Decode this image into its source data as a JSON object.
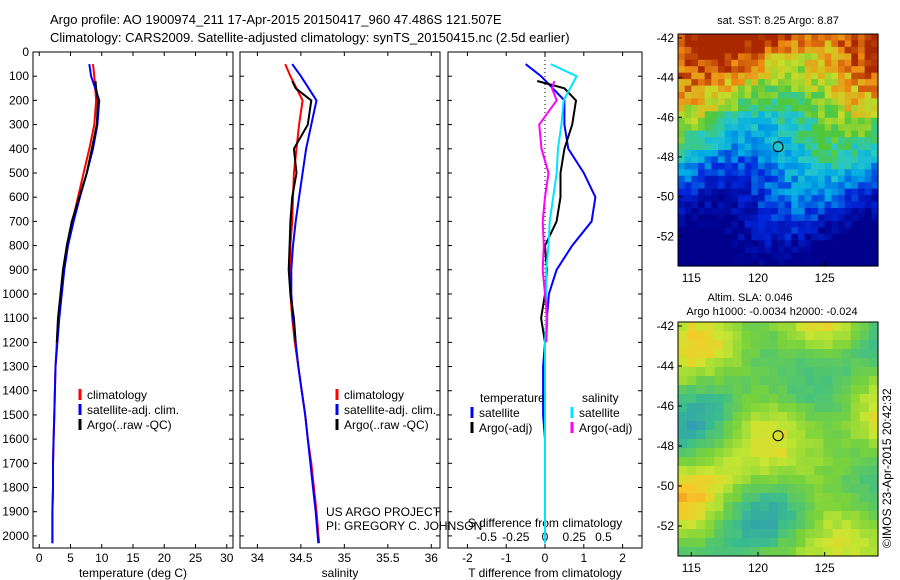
{
  "header": {
    "line1": "Argo profile: AO 1900974_211 17-Apr-2015 20150417_960 47.486S 121.507E",
    "line2": "Climatology: CARS2009. Satellite-adjusted climatology: synTS_20150415.nc (2.5d earlier)"
  },
  "colors": {
    "climatology": "#ff0000",
    "satellite": "#0000ff",
    "argo": "#000000",
    "sal_satellite": "#00e5ff",
    "sal_argo": "#ff00ff"
  },
  "chart_data": [
    {
      "id": "temperature",
      "type": "line",
      "xlabel": "temperature (deg C)",
      "ylabel": "",
      "xlim": [
        -1,
        31
      ],
      "ylim": [
        2050,
        0
      ],
      "xticks": [
        0,
        5,
        10,
        15,
        20,
        25,
        30
      ],
      "yticks": [
        0,
        100,
        200,
        300,
        400,
        500,
        600,
        700,
        800,
        900,
        1000,
        1100,
        1200,
        1300,
        1400,
        1500,
        1600,
        1700,
        1800,
        1900,
        2000
      ],
      "legend": [
        "climatology",
        "satellite-adj. clim.",
        "Argo(..raw -QC)"
      ],
      "series": [
        {
          "name": "climatology",
          "color": "#ff0000",
          "x": [
            8.6,
            8.8,
            9.1,
            8.8,
            8.0,
            7.1,
            6.2,
            5.3,
            4.5,
            3.9,
            3.5,
            3.1,
            2.8,
            2.6,
            2.5,
            2.4,
            2.3,
            2.2,
            2.2,
            2.1,
            2.1
          ],
          "y": [
            50,
            100,
            200,
            300,
            400,
            500,
            600,
            700,
            800,
            900,
            1000,
            1100,
            1200,
            1300,
            1400,
            1500,
            1600,
            1700,
            1800,
            1900,
            2030
          ]
        },
        {
          "name": "satellite-adj. clim.",
          "color": "#0000ff",
          "x": [
            8.0,
            8.3,
            9.6,
            9.3,
            8.6,
            7.6,
            6.5,
            5.5,
            4.6,
            4.0,
            3.6,
            3.2,
            2.9,
            2.6,
            2.5,
            2.4,
            2.3,
            2.2,
            2.2,
            2.1,
            2.1
          ],
          "y": [
            50,
            100,
            200,
            300,
            400,
            500,
            600,
            700,
            800,
            900,
            1000,
            1100,
            1200,
            1300,
            1400,
            1500,
            1600,
            1700,
            1800,
            1900,
            2030
          ]
        },
        {
          "name": "Argo(..raw -QC)",
          "color": "#000000",
          "x": [
            9.0,
            9.1,
            9.4,
            9.2,
            8.4,
            7.6,
            6.4,
            5.2,
            4.4,
            3.8,
            3.4,
            3.0,
            2.8
          ],
          "y": [
            120,
            150,
            200,
            300,
            400,
            500,
            600,
            700,
            800,
            900,
            1000,
            1100,
            1200
          ]
        }
      ]
    },
    {
      "id": "salinity",
      "type": "line",
      "xlabel": "salinity",
      "ylabel": "",
      "xlim": [
        33.8,
        36.1
      ],
      "ylim": [
        2050,
        0
      ],
      "xticks": [
        34,
        34.5,
        35,
        35.5,
        36
      ],
      "legend": [
        "climatology",
        "satellite-adj. clim.",
        "Argo(..raw -QC)"
      ],
      "series": [
        {
          "name": "climatology",
          "color": "#ff0000",
          "x": [
            34.32,
            34.38,
            34.52,
            34.48,
            34.45,
            34.42,
            34.41,
            34.4,
            34.38,
            34.38,
            34.38,
            34.4,
            34.43,
            34.47,
            34.51,
            34.55,
            34.58,
            34.62,
            34.65,
            34.68,
            34.71
          ],
          "y": [
            50,
            100,
            200,
            300,
            400,
            500,
            600,
            700,
            800,
            900,
            1000,
            1100,
            1200,
            1300,
            1400,
            1500,
            1600,
            1700,
            1800,
            1900,
            2030
          ]
        },
        {
          "name": "satellite-adj. clim.",
          "color": "#0000ff",
          "x": [
            34.4,
            34.5,
            34.68,
            34.62,
            34.56,
            34.52,
            34.48,
            34.44,
            34.41,
            34.39,
            34.39,
            34.41,
            34.44,
            34.47,
            34.51,
            34.55,
            34.58,
            34.61,
            34.64,
            34.67,
            34.7
          ],
          "y": [
            50,
            100,
            200,
            300,
            400,
            500,
            600,
            700,
            800,
            900,
            1000,
            1100,
            1200,
            1300,
            1400,
            1500,
            1600,
            1700,
            1800,
            1900,
            2030
          ]
        },
        {
          "name": "Argo(..raw -QC)",
          "color": "#000000",
          "x": [
            34.4,
            34.44,
            34.62,
            34.58,
            34.42,
            34.45,
            34.4,
            34.38,
            34.37,
            34.36,
            34.38,
            34.42,
            34.44
          ],
          "y": [
            120,
            150,
            200,
            300,
            400,
            500,
            600,
            700,
            800,
            900,
            1000,
            1100,
            1200
          ]
        }
      ]
    },
    {
      "id": "difference",
      "type": "line",
      "xlabel": "T difference from climatology",
      "xlabel_top": "S difference from climatology",
      "ylabel": "",
      "xlim": [
        -2.5,
        2.5
      ],
      "xticks": [
        -2,
        -1,
        0,
        1,
        2
      ],
      "xlim_top": [
        -0.83,
        0.83
      ],
      "xticks_top": [
        -0.5,
        -0.25,
        0,
        0.25,
        0.5
      ],
      "ylim": [
        2050,
        0
      ],
      "legend_title_left": "temperature",
      "legend_title_right": "salinity",
      "legend": [
        "satellite",
        "Argo(-adj)",
        "satellite",
        "Argo(-adj)"
      ],
      "series": [
        {
          "name": "satellite",
          "group": "temperature",
          "color": "#0000ff",
          "x": [
            -0.5,
            -0.1,
            0.5,
            0.5,
            0.6,
            1.0,
            1.3,
            1.2,
            0.7,
            0.3,
            0.1,
            0.05,
            0.0,
            -0.05,
            -0.05,
            -0.05,
            0.0,
            0.0,
            0.0,
            0.0,
            0.0
          ],
          "y": [
            50,
            100,
            200,
            300,
            400,
            500,
            600,
            700,
            800,
            900,
            1000,
            1100,
            1200,
            1300,
            1400,
            1500,
            1600,
            1700,
            1800,
            1900,
            2030
          ]
        },
        {
          "name": "Argo(-adj)",
          "group": "temperature",
          "color": "#000000",
          "x": [
            -0.2,
            0.5,
            0.8,
            0.7,
            0.5,
            0.4,
            0.4,
            0.3,
            0.0,
            0.05,
            0.0,
            -0.1,
            0.0
          ],
          "y": [
            120,
            150,
            200,
            300,
            400,
            500,
            600,
            700,
            800,
            900,
            1000,
            1100,
            1200
          ]
        },
        {
          "name": "satellite",
          "group": "salinity",
          "color": "#00e5ff",
          "x": [
            0.05,
            0.27,
            0.16,
            0.14,
            0.11,
            0.1,
            0.07,
            0.04,
            0.03,
            0.01,
            0.01,
            0.01,
            0.0,
            0.0,
            0.0,
            0.0,
            0.0,
            0.0,
            0.0,
            0.0,
            0.0
          ],
          "y": [
            50,
            100,
            200,
            300,
            400,
            500,
            600,
            700,
            800,
            900,
            1000,
            1100,
            1200,
            1300,
            1400,
            1500,
            1600,
            1700,
            1800,
            1900,
            2030
          ]
        },
        {
          "name": "Argo(-adj)",
          "group": "salinity",
          "color": "#ff00ff",
          "x": [
            0.08,
            0.06,
            0.1,
            -0.05,
            -0.03,
            0.03,
            0.0,
            -0.02,
            -0.01,
            -0.02,
            0.0,
            0.02,
            0.01
          ],
          "y": [
            120,
            150,
            200,
            300,
            400,
            500,
            600,
            700,
            800,
            900,
            1000,
            1100,
            1200
          ]
        }
      ]
    },
    {
      "id": "sst-map",
      "type": "heatmap",
      "title": "sat. SST: 8.25 Argo: 8.87",
      "xlim": [
        114,
        129
      ],
      "ylim": [
        -53.5,
        -41.8
      ],
      "xticks": [
        115,
        120,
        125
      ],
      "yticks": [
        -42,
        -44,
        -46,
        -48,
        -50,
        -52
      ],
      "marker": {
        "lon": 121.507,
        "lat": -47.486
      }
    },
    {
      "id": "sla-map",
      "type": "heatmap",
      "title": "Altim. SLA: 0.046",
      "subtitle": "Argo h1000: -0.0034 h2000: -0.024",
      "xlim": [
        114,
        129
      ],
      "ylim": [
        -53.5,
        -41.8
      ],
      "xticks": [
        115,
        120,
        125
      ],
      "yticks": [
        -42,
        -44,
        -46,
        -48,
        -50,
        -52
      ],
      "marker": {
        "lon": 121.507,
        "lat": -47.486
      }
    }
  ],
  "credits": {
    "project": "US ARGO PROJECT",
    "pi": "PI: GREGORY C. JOHNSON",
    "imos": "©IMOS 23-Apr-2015 20:42:32"
  }
}
